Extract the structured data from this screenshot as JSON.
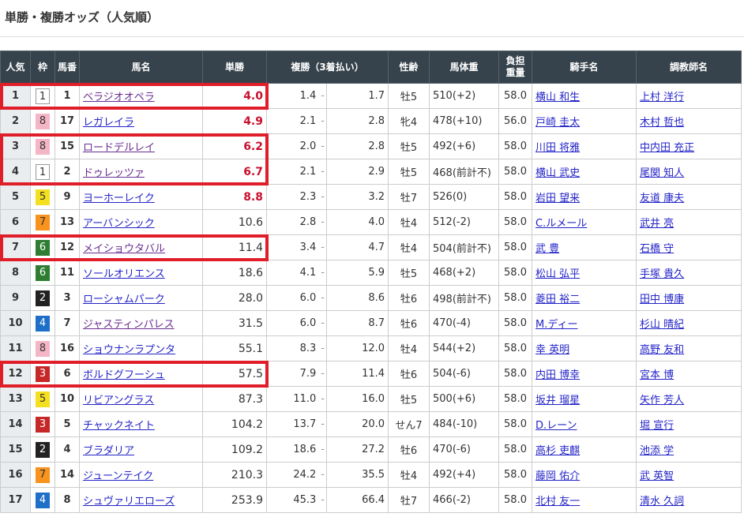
{
  "title": "単勝・複勝オッズ（人気順）",
  "headers": [
    "人気",
    "枠",
    "馬番",
    "馬名",
    "単勝",
    "複勝（3着払い）",
    "性齢",
    "馬体重",
    "負担\n重量",
    "騎手名",
    "調教師名"
  ],
  "waku_colors": {
    "1": [
      "#ffffff",
      "#333"
    ],
    "2": [
      "#222222",
      "#fff"
    ],
    "3": [
      "#c62828",
      "#fff"
    ],
    "4": [
      "#1e6fc8",
      "#fff"
    ],
    "5": [
      "#f5e020",
      "#333"
    ],
    "6": [
      "#2e7d32",
      "#fff"
    ],
    "7": [
      "#f7931e",
      "#333"
    ],
    "8": [
      "#f4b6c6",
      "#333"
    ]
  },
  "accent_color": "#c8102e",
  "highlight_color": "#e01e2a",
  "highlighted_ranks": [
    1,
    3,
    4,
    7,
    12
  ],
  "rows": [
    {
      "rank": "1",
      "waku": "1",
      "num": "1",
      "name": "ベラジオオペラ",
      "win": "4.0",
      "p_lo": "1.4",
      "p_hi": "1.7",
      "sex_age": "牡5",
      "weight": "510(+2)",
      "load": "58.0",
      "jockey": "横山 和生",
      "trainer": "上村 洋行",
      "visited": true
    },
    {
      "rank": "2",
      "waku": "8",
      "num": "17",
      "name": "レガレイラ",
      "win": "4.9",
      "p_lo": "2.1",
      "p_hi": "2.8",
      "sex_age": "牝4",
      "weight": "478(+10)",
      "load": "56.0",
      "jockey": "戸崎 圭太",
      "trainer": "木村 哲也",
      "visited": false
    },
    {
      "rank": "3",
      "waku": "8",
      "num": "15",
      "name": "ロードデルレイ",
      "win": "6.2",
      "p_lo": "2.0",
      "p_hi": "2.8",
      "sex_age": "牡5",
      "weight": "492(+6)",
      "load": "58.0",
      "jockey": "川田 将雅",
      "trainer": "中内田 充正",
      "visited": true
    },
    {
      "rank": "4",
      "waku": "1",
      "num": "2",
      "name": "ドゥレッツァ",
      "win": "6.7",
      "p_lo": "2.1",
      "p_hi": "2.9",
      "sex_age": "牡5",
      "weight": "468(前計不)",
      "load": "58.0",
      "jockey": "横山 武史",
      "trainer": "尾関 知人",
      "visited": true
    },
    {
      "rank": "5",
      "waku": "5",
      "num": "9",
      "name": "ヨーホーレイク",
      "win": "8.8",
      "p_lo": "2.3",
      "p_hi": "3.2",
      "sex_age": "牡7",
      "weight": "526(0)",
      "load": "58.0",
      "jockey": "岩田 望来",
      "trainer": "友道 康夫",
      "visited": false
    },
    {
      "rank": "6",
      "waku": "7",
      "num": "13",
      "name": "アーバンシック",
      "win": "10.6",
      "p_lo": "2.8",
      "p_hi": "4.0",
      "sex_age": "牡4",
      "weight": "512(-2)",
      "load": "58.0",
      "jockey": "C.ルメール",
      "trainer": "武井 亮",
      "visited": false
    },
    {
      "rank": "7",
      "waku": "6",
      "num": "12",
      "name": "メイショウタバル",
      "win": "11.4",
      "p_lo": "3.4",
      "p_hi": "4.7",
      "sex_age": "牡4",
      "weight": "504(前計不)",
      "load": "58.0",
      "jockey": "武 豊",
      "trainer": "石橋 守",
      "visited": true
    },
    {
      "rank": "8",
      "waku": "6",
      "num": "11",
      "name": "ソールオリエンス",
      "win": "18.6",
      "p_lo": "4.1",
      "p_hi": "5.9",
      "sex_age": "牡5",
      "weight": "468(+2)",
      "load": "58.0",
      "jockey": "松山 弘平",
      "trainer": "手塚 貴久",
      "visited": false
    },
    {
      "rank": "9",
      "waku": "2",
      "num": "3",
      "name": "ローシャムパーク",
      "win": "28.0",
      "p_lo": "6.0",
      "p_hi": "8.6",
      "sex_age": "牡6",
      "weight": "498(前計不)",
      "load": "58.0",
      "jockey": "菱田 裕二",
      "trainer": "田中 博康",
      "visited": false
    },
    {
      "rank": "10",
      "waku": "4",
      "num": "7",
      "name": "ジャスティンパレス",
      "win": "31.5",
      "p_lo": "6.0",
      "p_hi": "8.7",
      "sex_age": "牡6",
      "weight": "470(-4)",
      "load": "58.0",
      "jockey": "M.ディー",
      "trainer": "杉山 晴紀",
      "visited": true
    },
    {
      "rank": "11",
      "waku": "8",
      "num": "16",
      "name": "ショウナンラプンタ",
      "win": "55.1",
      "p_lo": "8.3",
      "p_hi": "12.0",
      "sex_age": "牡4",
      "weight": "544(+2)",
      "load": "58.0",
      "jockey": "幸 英明",
      "trainer": "高野 友和",
      "visited": false
    },
    {
      "rank": "12",
      "waku": "3",
      "num": "6",
      "name": "ボルドグフーシュ",
      "win": "57.5",
      "p_lo": "7.9",
      "p_hi": "11.4",
      "sex_age": "牡6",
      "weight": "504(-6)",
      "load": "58.0",
      "jockey": "内田 博幸",
      "trainer": "宮本 博",
      "visited": false
    },
    {
      "rank": "13",
      "waku": "5",
      "num": "10",
      "name": "リビアングラス",
      "win": "87.3",
      "p_lo": "11.0",
      "p_hi": "16.0",
      "sex_age": "牡5",
      "weight": "500(+6)",
      "load": "58.0",
      "jockey": "坂井 瑠星",
      "trainer": "矢作 芳人",
      "visited": false
    },
    {
      "rank": "14",
      "waku": "3",
      "num": "5",
      "name": "チャックネイト",
      "win": "104.2",
      "p_lo": "13.7",
      "p_hi": "20.0",
      "sex_age": "せん7",
      "weight": "484(-10)",
      "load": "58.0",
      "jockey": "D.レーン",
      "trainer": "堀 宣行",
      "visited": false
    },
    {
      "rank": "15",
      "waku": "2",
      "num": "4",
      "name": "ブラダリア",
      "win": "109.2",
      "p_lo": "18.6",
      "p_hi": "27.2",
      "sex_age": "牡6",
      "weight": "470(-6)",
      "load": "58.0",
      "jockey": "高杉 吏麒",
      "trainer": "池添 学",
      "visited": false
    },
    {
      "rank": "16",
      "waku": "7",
      "num": "14",
      "name": "ジューンテイク",
      "win": "210.3",
      "p_lo": "24.2",
      "p_hi": "35.5",
      "sex_age": "牡4",
      "weight": "492(+4)",
      "load": "58.0",
      "jockey": "藤岡 佑介",
      "trainer": "武 英智",
      "visited": false
    },
    {
      "rank": "17",
      "waku": "4",
      "num": "8",
      "name": "シュヴァリエローズ",
      "win": "253.9",
      "p_lo": "45.3",
      "p_hi": "66.4",
      "sex_age": "牡7",
      "weight": "466(-2)",
      "load": "58.0",
      "jockey": "北村 友一",
      "trainer": "清水 久詞",
      "visited": false
    }
  ]
}
